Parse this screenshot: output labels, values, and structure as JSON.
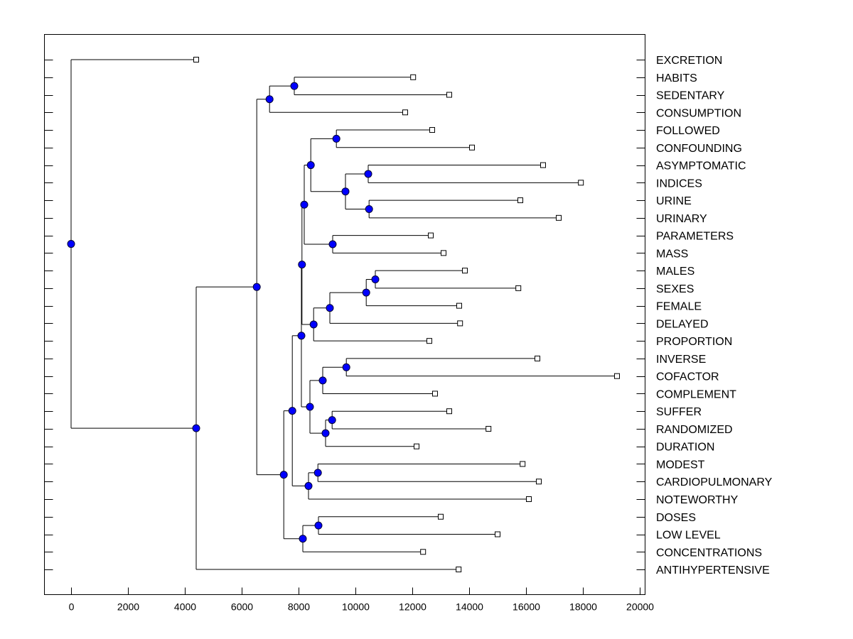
{
  "chart_data": {
    "type": "dendrogram",
    "orientation": "horizontal",
    "title": "",
    "xlabel": "",
    "ylabel": "",
    "xlim": [
      -950,
      20175
    ],
    "xticks": [
      0,
      2000,
      4000,
      6000,
      8000,
      10000,
      12000,
      14000,
      16000,
      18000,
      20000
    ],
    "xtick_labels": [
      "0",
      "2000",
      "4000",
      "6000",
      "8000",
      "10000",
      "12000",
      "14000",
      "16000",
      "18000",
      "20000"
    ],
    "grid": false,
    "node_color": "#0000ff",
    "leaf_marker": "open-square",
    "tree": {
      "height": 0,
      "children": [
        {
          "label": "EXCRETION",
          "value": 4400
        },
        {
          "height": 4400,
          "children": [
            {
              "height": 6530,
              "children": [
                {
                  "height": 6980,
                  "children": [
                    {
                      "height": 7850,
                      "children": [
                        {
                          "label": "HABITS",
                          "value": 12030
                        },
                        {
                          "label": "SEDENTARY",
                          "value": 13300
                        }
                      ]
                    },
                    {
                      "label": "CONSUMPTION",
                      "value": 11750
                    }
                  ]
                },
                {
                  "height": 7480,
                  "children": [
                    {
                      "height": 7780,
                      "children": [
                        {
                          "height": 8100,
                          "children": [
                            {
                              "height": 8120,
                              "children": [
                                {
                                  "height": 8200,
                                  "children": [
                                    {
                                      "height": 8430,
                                      "children": [
                                        {
                                          "height": 9330,
                                          "children": [
                                            {
                                              "label": "FOLLOWED",
                                              "value": 12700
                                            },
                                            {
                                              "label": "CONFOUNDING",
                                              "value": 14100
                                            }
                                          ]
                                        },
                                        {
                                          "height": 9650,
                                          "children": [
                                            {
                                              "height": 10450,
                                              "children": [
                                                {
                                                  "label": "ASYMPTOMATIC",
                                                  "value": 16600
                                                },
                                                {
                                                  "label": "INDICES",
                                                  "value": 17930
                                                }
                                              ]
                                            },
                                            {
                                              "height": 10480,
                                              "children": [
                                                {
                                                  "label": "URINE",
                                                  "value": 15800
                                                },
                                                {
                                                  "label": "URINARY",
                                                  "value": 17150
                                                }
                                              ]
                                            }
                                          ]
                                        }
                                      ]
                                    },
                                    {
                                      "height": 9200,
                                      "children": [
                                        {
                                          "label": "PARAMETERS",
                                          "value": 12650
                                        },
                                        {
                                          "label": "MASS",
                                          "value": 13100
                                        }
                                      ]
                                    }
                                  ]
                                },
                                {
                                  "height": 8530,
                                  "children": [
                                    {
                                      "height": 9100,
                                      "children": [
                                        {
                                          "height": 10380,
                                          "children": [
                                            {
                                              "height": 10700,
                                              "children": [
                                                {
                                                  "label": "MALES",
                                                  "value": 13850
                                                },
                                                {
                                                  "label": "SEXES",
                                                  "value": 15730
                                                }
                                              ]
                                            },
                                            {
                                              "label": "FEMALE",
                                              "value": 13650
                                            }
                                          ]
                                        },
                                        {
                                          "label": "DELAYED",
                                          "value": 13680
                                        }
                                      ]
                                    },
                                    {
                                      "label": "PROPORTION",
                                      "value": 12600
                                    }
                                  ]
                                }
                              ]
                            },
                            {
                              "height": 8400,
                              "children": [
                                {
                                  "height": 8850,
                                  "children": [
                                    {
                                      "height": 9680,
                                      "children": [
                                        {
                                          "label": "INVERSE",
                                          "value": 16400
                                        },
                                        {
                                          "label": "COFACTOR",
                                          "value": 19200
                                        }
                                      ]
                                    },
                                    {
                                      "label": "COMPLEMENT",
                                      "value": 12800
                                    }
                                  ]
                                },
                                {
                                  "height": 8950,
                                  "children": [
                                    {
                                      "height": 9180,
                                      "children": [
                                        {
                                          "label": "SUFFER",
                                          "value": 13300
                                        },
                                        {
                                          "label": "RANDOMIZED",
                                          "value": 14680
                                        }
                                      ]
                                    },
                                    {
                                      "label": "DURATION",
                                      "value": 12150
                                    }
                                  ]
                                }
                              ]
                            }
                          ]
                        },
                        {
                          "height": 8350,
                          "children": [
                            {
                              "height": 8680,
                              "children": [
                                {
                                  "label": "MODEST",
                                  "value": 15880
                                },
                                {
                                  "label": "CARDIOPULMONARY",
                                  "value": 16450
                                }
                              ]
                            },
                            {
                              "label": "NOTEWORTHY",
                              "value": 16100
                            }
                          ]
                        }
                      ]
                    },
                    {
                      "height": 8150,
                      "children": [
                        {
                          "height": 8700,
                          "children": [
                            {
                              "label": "DOSES",
                              "value": 13000
                            },
                            {
                              "label": "LOW LEVEL",
                              "value": 15000
                            }
                          ]
                        },
                        {
                          "label": "CONCENTRATIONS",
                          "value": 12380
                        }
                      ]
                    }
                  ]
                }
              ]
            },
            {
              "label": "ANTIHYPERTENSIVE",
              "value": 13630
            }
          ]
        }
      ]
    }
  }
}
